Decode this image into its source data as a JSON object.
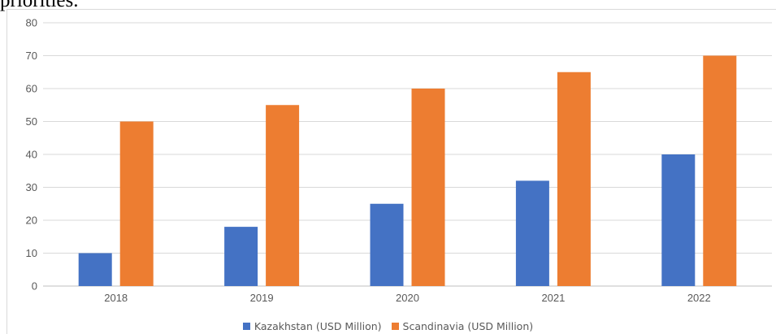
{
  "header_fragment": "priorities.",
  "chart_data": {
    "type": "bar",
    "title": "",
    "xlabel": "",
    "ylabel": "",
    "categories": [
      "2018",
      "2019",
      "2020",
      "2021",
      "2022"
    ],
    "series": [
      {
        "name": "Kazakhstan (USD Million)",
        "values": [
          10,
          18,
          25,
          32,
          40
        ],
        "color": "#4472C4"
      },
      {
        "name": "Scandinavia (USD Million)",
        "values": [
          50,
          55,
          60,
          65,
          70
        ],
        "color": "#ED7D31"
      }
    ],
    "ylim": [
      0,
      80
    ],
    "yticks": [
      0,
      10,
      20,
      30,
      40,
      50,
      60,
      70,
      80
    ],
    "grid": true,
    "legend_position": "bottom"
  }
}
